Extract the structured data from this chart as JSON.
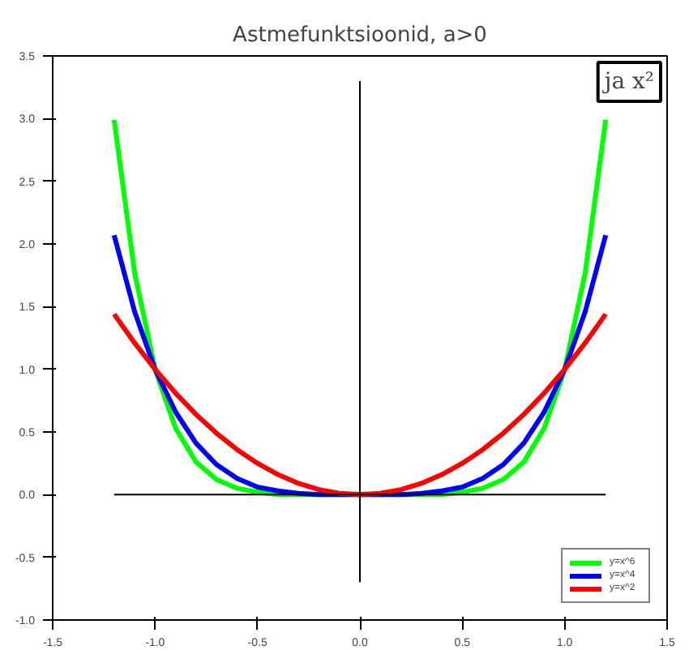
{
  "chart_data": {
    "type": "line",
    "title": "Astmefunktsioonid, a>0",
    "annotations": [
      "ja x²"
    ],
    "x": [
      -1.2,
      -1.1,
      -1.0,
      -0.9,
      -0.8,
      -0.7,
      -0.6,
      -0.5,
      -0.4,
      -0.3,
      -0.2,
      -0.1,
      0,
      0.1,
      0.2,
      0.3,
      0.4,
      0.5,
      0.6,
      0.7,
      0.8,
      0.9,
      1.0,
      1.1,
      1.2
    ],
    "series": [
      {
        "name": "y=x^6",
        "color": "#00ff00",
        "values": [
          2.99,
          1.77,
          1,
          0.53,
          0.26,
          0.12,
          0.05,
          0.02,
          0,
          0,
          0,
          0,
          0,
          0,
          0,
          0,
          0,
          0.02,
          0.05,
          0.12,
          0.26,
          0.53,
          1,
          1.77,
          2.99
        ]
      },
      {
        "name": "y=x^4",
        "color": "#0000ff",
        "values": [
          2.07,
          1.46,
          1,
          0.66,
          0.41,
          0.24,
          0.13,
          0.06,
          0.03,
          0.01,
          0,
          0,
          0,
          0,
          0,
          0.01,
          0.03,
          0.06,
          0.13,
          0.24,
          0.41,
          0.66,
          1,
          1.46,
          2.07
        ]
      },
      {
        "name": "y=x^2",
        "color": "#ff0000",
        "values": [
          1.44,
          1.21,
          1,
          0.81,
          0.64,
          0.49,
          0.36,
          0.25,
          0.16,
          0.09,
          0.04,
          0.01,
          0,
          0.01,
          0.04,
          0.09,
          0.16,
          0.25,
          0.36,
          0.49,
          0.64,
          0.81,
          1,
          1.21,
          1.44
        ]
      },
      {
        "color": "#000000",
        "x": [
          -1.2,
          1.2
        ],
        "values": [
          0,
          0
        ]
      },
      {
        "color": "#000000",
        "x": [
          0,
          0
        ],
        "values": [
          -0.7,
          3.3
        ]
      }
    ],
    "xlim": [
      -1.5,
      1.5
    ],
    "ylim": [
      -1.0,
      3.5
    ],
    "xticks": [
      {
        "value": -1.5,
        "label": "-1.5"
      },
      {
        "value": -1.0,
        "label": "-1.0"
      },
      -0.5,
      {
        "value": 0,
        "label": "0.0"
      },
      0.5,
      {
        "value": 1.0,
        "label": "1.0"
      },
      {
        "value": 1.5,
        "label": "1.5"
      }
    ],
    "yticks": [
      {
        "value": -1.0,
        "label": "-1.0"
      },
      -0.5,
      {
        "value": 0,
        "label": "0.0"
      },
      0.5,
      {
        "value": 1.0,
        "label": "1.0"
      },
      1.5,
      {
        "value": 2.0,
        "label": "2.0"
      },
      2.5,
      {
        "value": 3.0,
        "label": "3.0"
      },
      3.5
    ],
    "grid": false,
    "legend": "bottom right",
    "marker": "none",
    "line_style": "solid"
  }
}
